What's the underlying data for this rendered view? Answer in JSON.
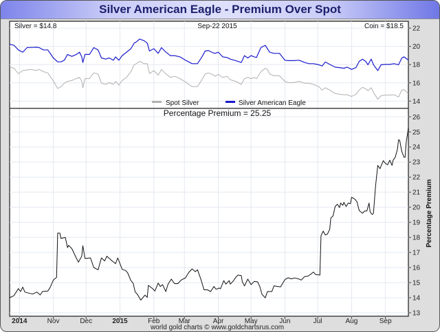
{
  "title": "Silver American Eagle - Premium Over Spot",
  "footer": "world gold charts © www.goldchartsrus.com",
  "colors": {
    "silver": "#b0b0b0",
    "coin": "#1a1acc",
    "premium": "#111111",
    "title_text": "#1c1f6b",
    "grid": "#e3e8f0"
  },
  "chart_data": [
    {
      "type": "line",
      "header_left": "Silver = $14.8",
      "header_center": "Sep-22  2015",
      "header_right": "Coin = $18.5",
      "ylim": [
        13.2,
        22.75
      ],
      "yticks": [
        14,
        16,
        18,
        20,
        22
      ],
      "grid": true,
      "legend": "bottom-center",
      "x": [
        "2014-09-22",
        "2014-09-26",
        "2014-09-30",
        "2014-10-04",
        "2014-10-08",
        "2014-10-12",
        "2014-10-16",
        "2014-10-19",
        "2014-10-23",
        "2014-10-27",
        "2014-11-01",
        "2014-11-05",
        "2014-11-08",
        "2014-11-11",
        "2014-11-14",
        "2014-11-18",
        "2014-11-22",
        "2014-11-25",
        "2014-11-27",
        "2014-11-28",
        "2014-11-30",
        "2014-12-04",
        "2014-12-08",
        "2014-12-12",
        "2014-12-15",
        "2014-12-19",
        "2014-12-22",
        "2014-12-26",
        "2014-12-28",
        "2014-12-31",
        "2015-01-03",
        "2015-01-07",
        "2015-01-11",
        "2015-01-14",
        "2015-01-16",
        "2015-01-19",
        "2015-01-23",
        "2015-01-26",
        "2015-01-28",
        "2015-02-01",
        "2015-02-05",
        "2015-02-08",
        "2015-02-11",
        "2015-02-16",
        "2015-02-20",
        "2015-02-25",
        "2015-03-02",
        "2015-03-08",
        "2015-03-13",
        "2015-03-17",
        "2015-03-20",
        "2015-03-23",
        "2015-03-27",
        "2015-03-29",
        "2015-04-01",
        "2015-04-05",
        "2015-04-09",
        "2015-04-12",
        "2015-04-17",
        "2015-04-22",
        "2015-04-25",
        "2015-04-28",
        "2015-05-01",
        "2015-05-04",
        "2015-05-06",
        "2015-05-10",
        "2015-05-14",
        "2015-05-16",
        "2015-05-18",
        "2015-05-22",
        "2015-05-27",
        "2015-06-01",
        "2015-06-04",
        "2015-06-09",
        "2015-06-14",
        "2015-06-19",
        "2015-06-23",
        "2015-06-27",
        "2015-07-02",
        "2015-07-05",
        "2015-07-08",
        "2015-07-12",
        "2015-07-17",
        "2015-07-21",
        "2015-07-25",
        "2015-07-28",
        "2015-08-01",
        "2015-08-05",
        "2015-08-08",
        "2015-08-11",
        "2015-08-14",
        "2015-08-16",
        "2015-08-19",
        "2015-08-21",
        "2015-08-25",
        "2015-08-28",
        "2015-09-01",
        "2015-09-05",
        "2015-09-09",
        "2015-09-13",
        "2015-09-16",
        "2015-09-18",
        "2015-09-22"
      ],
      "series": [
        {
          "name": "Spot Silver",
          "values": [
            17.72,
            17.6,
            17.0,
            17.34,
            17.42,
            17.47,
            17.34,
            17.47,
            17.22,
            17.09,
            16.21,
            15.38,
            15.58,
            15.96,
            16.16,
            16.26,
            16.46,
            16.59,
            16.21,
            15.46,
            16.46,
            16.46,
            17.09,
            16.97,
            15.96,
            15.83,
            16.02,
            15.83,
            16.16,
            15.76,
            16.26,
            16.59,
            17.22,
            17.98,
            18.1,
            18.35,
            18.1,
            18.1,
            17.02,
            17.34,
            16.85,
            17.47,
            17.09,
            16.59,
            16.72,
            16.46,
            16.09,
            15.58,
            15.58,
            16.34,
            16.97,
            17.09,
            16.9,
            16.72,
            16.92,
            16.59,
            16.72,
            16.34,
            16.16,
            15.83,
            16.46,
            16.59,
            16.46,
            16.59,
            16.46,
            17.22,
            17.6,
            17.47,
            16.97,
            16.77,
            16.77,
            16.16,
            16.02,
            16.02,
            16.16,
            15.96,
            15.96,
            15.83,
            15.58,
            15.21,
            15.46,
            15.21,
            14.83,
            14.75,
            14.7,
            14.7,
            14.51,
            14.75,
            15.21,
            15.51,
            15.34,
            15.13,
            15.46,
            14.96,
            14.2,
            14.58,
            14.66,
            14.66,
            14.7,
            14.45,
            15.21,
            15.26,
            14.8
          ]
        },
        {
          "name": "Silver American Eagle",
          "values": [
            20.24,
            20.11,
            19.61,
            19.36,
            19.86,
            19.88,
            19.9,
            19.86,
            19.61,
            19.61,
            18.73,
            18.3,
            18.3,
            18.48,
            19.11,
            18.9,
            19.11,
            19.36,
            18.85,
            18.23,
            19.11,
            19.11,
            19.86,
            19.61,
            18.73,
            18.6,
            18.73,
            18.48,
            18.85,
            18.48,
            18.98,
            19.36,
            19.74,
            20.36,
            20.49,
            20.8,
            20.62,
            20.36,
            19.49,
            19.74,
            19.23,
            19.86,
            19.49,
            18.98,
            18.98,
            18.85,
            18.48,
            18.1,
            18.1,
            18.85,
            19.49,
            19.55,
            19.3,
            19.23,
            19.36,
            18.85,
            18.78,
            18.6,
            18.43,
            18.23,
            18.98,
            18.73,
            18.98,
            18.85,
            18.78,
            19.86,
            20.11,
            19.74,
            19.36,
            19.23,
            19.23,
            18.48,
            18.43,
            18.43,
            18.48,
            18.23,
            18.1,
            18.1,
            17.98,
            17.85,
            18.28,
            18.02,
            17.72,
            17.67,
            17.6,
            17.72,
            17.47,
            17.67,
            18.35,
            18.6,
            18.35,
            17.98,
            18.6,
            17.98,
            17.34,
            17.98,
            18.02,
            18.02,
            18.1,
            17.98,
            18.73,
            18.85,
            18.5
          ]
        }
      ]
    },
    {
      "type": "line",
      "title": "Percentage Premium = 25.25",
      "ylabel": "Percentage Premium",
      "ylim": [
        12.77,
        26.56
      ],
      "yticks": [
        13,
        14,
        15,
        16,
        17,
        18,
        19,
        20,
        21,
        22,
        23,
        24,
        25,
        26
      ],
      "grid": true,
      "xticks": [
        {
          "date": "2014-10-01",
          "label": "2014",
          "bold": true
        },
        {
          "date": "2014-11-01",
          "label": "Nov"
        },
        {
          "date": "2014-12-01",
          "label": "Dec"
        },
        {
          "date": "2015-01-01",
          "label": "2015",
          "bold": true
        },
        {
          "date": "2015-02-01",
          "label": "Feb"
        },
        {
          "date": "2015-03-01",
          "label": "Mar"
        },
        {
          "date": "2015-04-01",
          "label": "Apr"
        },
        {
          "date": "2015-05-01",
          "label": "May"
        },
        {
          "date": "2015-06-01",
          "label": "Jun"
        },
        {
          "date": "2015-07-01",
          "label": "Jul"
        },
        {
          "date": "2015-08-01",
          "label": "Aug"
        },
        {
          "date": "2015-09-01",
          "label": "Sep"
        }
      ],
      "x": [
        "2014-09-22",
        "2014-09-26",
        "2014-09-30",
        "2014-10-02",
        "2014-10-04",
        "2014-10-06",
        "2014-10-13",
        "2014-10-17",
        "2014-10-20",
        "2014-10-22",
        "2014-10-27",
        "2014-10-29",
        "2014-11-01",
        "2014-11-04",
        "2014-11-05",
        "2014-11-07",
        "2014-11-08",
        "2014-11-12",
        "2014-11-14",
        "2014-11-15",
        "2014-11-18",
        "2014-11-22",
        "2014-11-24",
        "2014-11-27",
        "2014-11-28",
        "2014-11-30",
        "2014-12-05",
        "2014-12-08",
        "2014-12-12",
        "2014-12-15",
        "2014-12-18",
        "2014-12-20",
        "2014-12-24",
        "2014-12-28",
        "2014-12-30",
        "2015-01-03",
        "2015-01-06",
        "2015-01-08",
        "2015-01-11",
        "2015-01-13",
        "2015-01-15",
        "2015-01-17",
        "2015-01-20",
        "2015-01-24",
        "2015-01-26",
        "2015-01-27",
        "2015-01-31",
        "2015-02-02",
        "2015-02-05",
        "2015-02-07",
        "2015-02-09",
        "2015-02-12",
        "2015-02-14",
        "2015-02-17",
        "2015-02-20",
        "2015-02-23",
        "2015-02-26",
        "2015-03-02",
        "2015-03-05",
        "2015-03-08",
        "2015-03-11",
        "2015-03-13",
        "2015-03-16",
        "2015-03-19",
        "2015-03-22",
        "2015-03-25",
        "2015-03-28",
        "2015-03-30",
        "2015-04-02",
        "2015-04-03",
        "2015-04-06",
        "2015-04-08",
        "2015-04-11",
        "2015-04-12",
        "2015-04-15",
        "2015-04-17",
        "2015-04-19",
        "2015-04-22",
        "2015-04-23",
        "2015-04-25",
        "2015-04-28",
        "2015-05-01",
        "2015-05-04",
        "2015-05-07",
        "2015-05-09",
        "2015-05-11",
        "2015-05-14",
        "2015-05-16",
        "2015-05-20",
        "2015-05-22",
        "2015-05-28",
        "2015-06-01",
        "2015-06-04",
        "2015-06-07",
        "2015-06-10",
        "2015-06-14",
        "2015-06-16",
        "2015-06-19",
        "2015-06-22",
        "2015-06-25",
        "2015-06-27",
        "2015-06-29",
        "2015-07-03",
        "2015-07-04",
        "2015-07-06",
        "2015-07-08",
        "2015-07-10",
        "2015-07-12",
        "2015-07-13",
        "2015-07-15",
        "2015-07-17",
        "2015-07-19",
        "2015-07-21",
        "2015-07-22",
        "2015-07-24",
        "2015-07-25",
        "2015-07-27",
        "2015-07-29",
        "2015-07-31",
        "2015-08-01",
        "2015-08-04",
        "2015-08-06",
        "2015-08-08",
        "2015-08-11",
        "2015-08-13",
        "2015-08-15",
        "2015-08-17",
        "2015-08-18",
        "2015-08-20",
        "2015-08-21",
        "2015-08-23",
        "2015-08-25",
        "2015-08-27",
        "2015-08-30",
        "2015-09-01",
        "2015-09-03",
        "2015-09-05",
        "2015-09-07",
        "2015-09-08",
        "2015-09-10",
        "2015-09-12",
        "2015-09-13",
        "2015-09-14",
        "2015-09-16",
        "2015-09-18",
        "2015-09-19",
        "2015-09-20",
        "2015-09-22"
      ],
      "series": [
        {
          "values": [
            14.0,
            14.14,
            14.6,
            14.41,
            14.7,
            14.37,
            14.24,
            14.37,
            14.18,
            14.41,
            14.44,
            14.67,
            15.17,
            15.35,
            18.28,
            18.28,
            17.93,
            18.0,
            17.32,
            17.47,
            17.25,
            16.64,
            16.36,
            16.75,
            17.45,
            16.6,
            16.64,
            16.0,
            15.85,
            16.64,
            16.44,
            16.75,
            16.49,
            16.26,
            16.64,
            15.88,
            15.81,
            15.66,
            15.13,
            14.97,
            14.37,
            14.22,
            13.84,
            14.17,
            14.02,
            14.82,
            14.59,
            14.44,
            14.97,
            14.74,
            14.87,
            14.41,
            14.89,
            15.23,
            14.93,
            14.93,
            15.17,
            15.32,
            15.68,
            15.91,
            15.73,
            15.85,
            15.23,
            14.52,
            14.52,
            14.41,
            14.74,
            14.56,
            14.64,
            14.59,
            15.13,
            14.9,
            15.13,
            14.9,
            15.13,
            15.35,
            15.5,
            15.47,
            15.05,
            14.78,
            15.23,
            14.87,
            15.08,
            15.05,
            14.74,
            14.22,
            13.99,
            14.41,
            14.41,
            14.78,
            14.72,
            15.2,
            15.32,
            15.25,
            15.31,
            15.23,
            15.17,
            15.4,
            15.43,
            15.58,
            15.7,
            15.54,
            15.5,
            18.11,
            18.42,
            18.16,
            18.23,
            18.54,
            19.29,
            19.42,
            20.05,
            20.2,
            19.98,
            20.28,
            20.13,
            20.33,
            20.05,
            20.28,
            20.24,
            20.66,
            20.54,
            20.36,
            19.78,
            19.6,
            19.75,
            19.75,
            20.28,
            19.68,
            19.52,
            19.6,
            21.42,
            22.78,
            22.56,
            23.09,
            22.91,
            22.82,
            23.12,
            22.78,
            23.12,
            23.32,
            23.85,
            24.48,
            24.45,
            23.69,
            23.32,
            23.32,
            24.3,
            25.25
          ]
        }
      ]
    }
  ]
}
